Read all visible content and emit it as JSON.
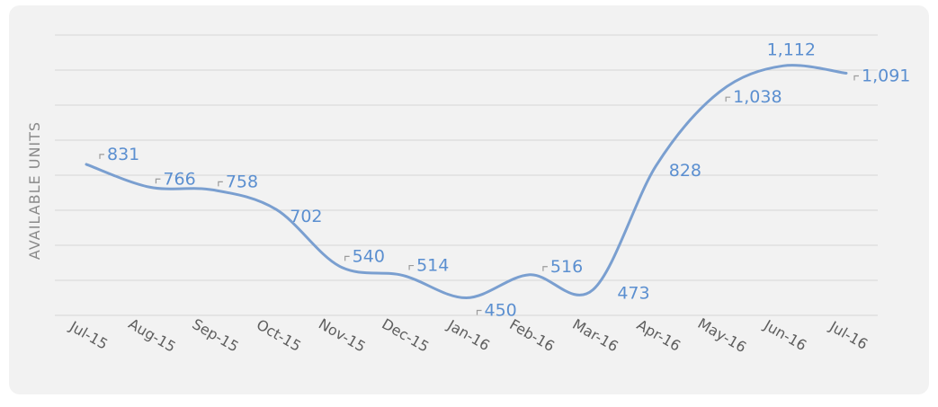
{
  "chart_data": {
    "type": "line",
    "title": "",
    "xlabel": "",
    "ylabel": "AVAILABLE UNITS",
    "categories": [
      "Jul-15",
      "Aug-15",
      "Sep-15",
      "Oct-15",
      "Nov-15",
      "Dec-15",
      "Jan-16",
      "Feb-16",
      "Mar-16",
      "Apr-16",
      "May-16",
      "Jun-16",
      "Jul-16"
    ],
    "series": [
      {
        "values": [
          831,
          766,
          758,
          702,
          540,
          514,
          450,
          516,
          473,
          828,
          1038,
          1112,
          1091
        ],
        "labels": [
          "831",
          "766",
          "758",
          "702",
          "540",
          "514",
          "450",
          "516",
          "473",
          "828",
          "1,038",
          "1,112",
          "1,091"
        ]
      }
    ],
    "ylim": [
      400,
      1200
    ],
    "y_gridlines": 9,
    "grid": true,
    "smooth": true,
    "legend": "none",
    "colors": {
      "line": "#7a9fd0",
      "label": "#5b8fd0",
      "grid": "#d6d6d6",
      "background": "#f2f2f2"
    }
  }
}
